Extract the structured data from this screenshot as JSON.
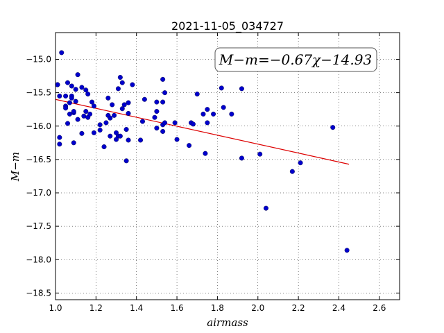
{
  "chart_data": {
    "type": "scatter",
    "title": "2021-11-05_034727",
    "xlabel": "airmass",
    "ylabel": "M−m",
    "xlim": [
      1.0,
      2.7
    ],
    "ylim": [
      -18.6,
      -14.6
    ],
    "invert_y": true,
    "grid": true,
    "x_ticks": [
      1.0,
      1.2,
      1.4,
      1.6,
      1.8,
      2.0,
      2.2,
      2.4,
      2.6
    ],
    "x_tick_labels": [
      "1.0",
      "1.2",
      "1.4",
      "1.6",
      "1.8",
      "2.0",
      "2.2",
      "2.4",
      "2.6"
    ],
    "y_ticks": [
      -15.0,
      -15.5,
      -16.0,
      -16.5,
      -17.0,
      -17.5,
      -18.0,
      -18.5
    ],
    "y_tick_labels": [
      "−15.0",
      "−15.5",
      "−16.0",
      "−16.5",
      "−17.0",
      "−17.5",
      "−18.0",
      "−18.5"
    ],
    "colors": {
      "points": "#0000cc",
      "fit_line": "#dd0000"
    },
    "fit": {
      "label": "M−m=−0.67χ−14.93",
      "slope": -0.67,
      "intercept": -14.93,
      "x_range": [
        1.0,
        2.45
      ],
      "legend_position": "top-right"
    },
    "points": [
      [
        1.01,
        -15.38
      ],
      [
        1.01,
        -15.38
      ],
      [
        1.02,
        -15.55
      ],
      [
        1.02,
        -16.17
      ],
      [
        1.02,
        -16.27
      ],
      [
        1.03,
        -14.9
      ],
      [
        1.05,
        -15.55
      ],
      [
        1.05,
        -15.7
      ],
      [
        1.05,
        -15.73
      ],
      [
        1.06,
        -15.96
      ],
      [
        1.06,
        -15.35
      ],
      [
        1.07,
        -15.65
      ],
      [
        1.07,
        -15.82
      ],
      [
        1.08,
        -15.4
      ],
      [
        1.08,
        -15.55
      ],
      [
        1.08,
        -15.58
      ],
      [
        1.09,
        -15.8
      ],
      [
        1.09,
        -15.78
      ],
      [
        1.1,
        -15.63
      ],
      [
        1.09,
        -16.25
      ],
      [
        1.11,
        -15.23
      ],
      [
        1.1,
        -15.45
      ],
      [
        1.11,
        -15.9
      ],
      [
        1.13,
        -15.42
      ],
      [
        1.13,
        -16.11
      ],
      [
        1.14,
        -15.85
      ],
      [
        1.15,
        -15.46
      ],
      [
        1.15,
        -15.78
      ],
      [
        1.16,
        -15.52
      ],
      [
        1.16,
        -15.87
      ],
      [
        1.17,
        -15.82
      ],
      [
        1.18,
        -15.64
      ],
      [
        1.19,
        -15.7
      ],
      [
        1.19,
        -16.1
      ],
      [
        1.22,
        -15.98
      ],
      [
        1.22,
        -16.06
      ],
      [
        1.24,
        -16.31
      ],
      [
        1.25,
        -15.95
      ],
      [
        1.26,
        -15.84
      ],
      [
        1.26,
        -15.58
      ],
      [
        1.27,
        -15.88
      ],
      [
        1.27,
        -16.15
      ],
      [
        1.28,
        -15.68
      ],
      [
        1.29,
        -15.84
      ],
      [
        1.3,
        -16.1
      ],
      [
        1.31,
        -16.15
      ],
      [
        1.3,
        -16.2
      ],
      [
        1.31,
        -15.44
      ],
      [
        1.32,
        -16.15
      ],
      [
        1.32,
        -15.27
      ],
      [
        1.33,
        -15.35
      ],
      [
        1.33,
        -15.74
      ],
      [
        1.34,
        -15.68
      ],
      [
        1.35,
        -16.52
      ],
      [
        1.35,
        -16.05
      ],
      [
        1.36,
        -16.21
      ],
      [
        1.36,
        -15.65
      ],
      [
        1.36,
        -15.81
      ],
      [
        1.38,
        -15.38
      ],
      [
        1.42,
        -16.21
      ],
      [
        1.43,
        -15.93
      ],
      [
        1.44,
        -15.6
      ],
      [
        1.49,
        -15.87
      ],
      [
        1.5,
        -15.64
      ],
      [
        1.5,
        -15.78
      ],
      [
        1.5,
        -16.03
      ],
      [
        1.53,
        -15.3
      ],
      [
        1.53,
        -15.64
      ],
      [
        1.53,
        -15.98
      ],
      [
        1.53,
        -16.08
      ],
      [
        1.54,
        -15.5
      ],
      [
        1.54,
        -15.95
      ],
      [
        1.59,
        -15.95
      ],
      [
        1.6,
        -16.2
      ],
      [
        1.66,
        -16.29
      ],
      [
        1.67,
        -15.95
      ],
      [
        1.68,
        -15.97
      ],
      [
        1.7,
        -15.52
      ],
      [
        1.73,
        -15.82
      ],
      [
        1.74,
        -16.41
      ],
      [
        1.75,
        -15.95
      ],
      [
        1.75,
        -15.75
      ],
      [
        1.78,
        -15.82
      ],
      [
        1.82,
        -15.43
      ],
      [
        1.83,
        -15.72
      ],
      [
        1.87,
        -15.82
      ],
      [
        1.92,
        -16.48
      ],
      [
        1.92,
        -15.44
      ],
      [
        2.01,
        -16.42
      ],
      [
        2.04,
        -17.23
      ],
      [
        2.17,
        -16.68
      ],
      [
        2.21,
        -16.55
      ],
      [
        2.37,
        -16.02
      ],
      [
        2.44,
        -17.86
      ]
    ]
  }
}
